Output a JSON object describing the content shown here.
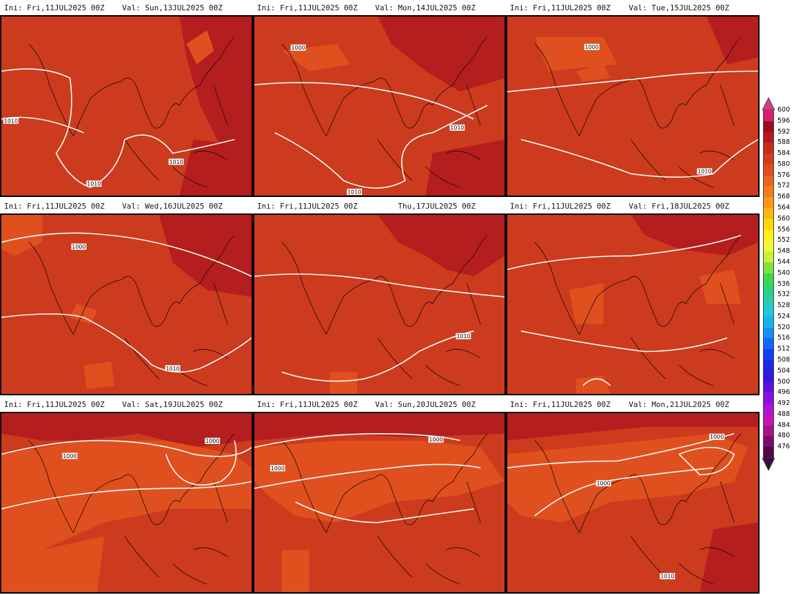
{
  "panels": [
    {
      "ini": "Ini: Fri,11JUL2025 00Z",
      "val": "Val: Sun,13JUL2025 00Z",
      "labels": [
        "1010",
        "1010",
        "1010"
      ]
    },
    {
      "ini": "Ini: Fri,11JUL2025 00Z",
      "val": "Val: Mon,14JUL2025 00Z",
      "labels": [
        "1000",
        "1010",
        "1010"
      ]
    },
    {
      "ini": "Ini: Fri,11JUL2025 00Z",
      "val": "Val: Tue,15JUL2025 00Z",
      "labels": [
        "1000",
        "1010"
      ]
    },
    {
      "ini": "Ini: Fri,11JUL2025 00Z",
      "val": "Val: Wed,16JUL2025 00Z",
      "labels": [
        "1000",
        "1010"
      ]
    },
    {
      "ini": "Ini: Fri,11JUL2025 00Z",
      "val": "Thu,17JUL2025 00Z",
      "labels": [
        "1010"
      ]
    },
    {
      "ini": "Ini: Fri,11JUL2025 00Z",
      "val": "Val: Fri,18JUL2025 00Z",
      "labels": []
    },
    {
      "ini": "Ini: Fri,11JUL2025 00Z",
      "val": "Val: Sat,19JUL2025 00Z",
      "labels": [
        "1000",
        "1000"
      ]
    },
    {
      "ini": "Ini: Fri,11JUL2025 00Z",
      "val": "Val: Sun,20JUL2025 00Z",
      "labels": [
        "1000",
        "1000"
      ]
    },
    {
      "ini": "Ini: Fri,11JUL2025 00Z",
      "val": "Val: Mon,21JUL2025 00Z",
      "labels": [
        "1000",
        "1000",
        "1010"
      ]
    }
  ],
  "colorbar": {
    "levels": [
      "600",
      "596",
      "592",
      "588",
      "584",
      "580",
      "576",
      "572",
      "568",
      "564",
      "560",
      "556",
      "552",
      "548",
      "544",
      "540",
      "536",
      "532",
      "528",
      "524",
      "520",
      "516",
      "512",
      "508",
      "504",
      "500",
      "496",
      "492",
      "488",
      "484",
      "480",
      "476"
    ],
    "colors": [
      "#d8206e",
      "#9e0e1c",
      "#b51a1a",
      "#c82a1c",
      "#d43a1c",
      "#e04e1e",
      "#ea6420",
      "#f27c1c",
      "#f89a10",
      "#fcb80c",
      "#fed60a",
      "#fff01a",
      "#f4f63c",
      "#c8f03a",
      "#7ee43a",
      "#3ed84a",
      "#28d27e",
      "#22d0b0",
      "#1ec8d8",
      "#18b0f0",
      "#1490f8",
      "#1068f8",
      "#1040f0",
      "#1c28e8",
      "#3418e0",
      "#5a12e0",
      "#8810e0",
      "#b010d8",
      "#c812b8",
      "#a8108e",
      "#7c0c6a",
      "#520848"
    ],
    "top_color": "#d83a8a",
    "bottom_color": "#3c0a44"
  }
}
